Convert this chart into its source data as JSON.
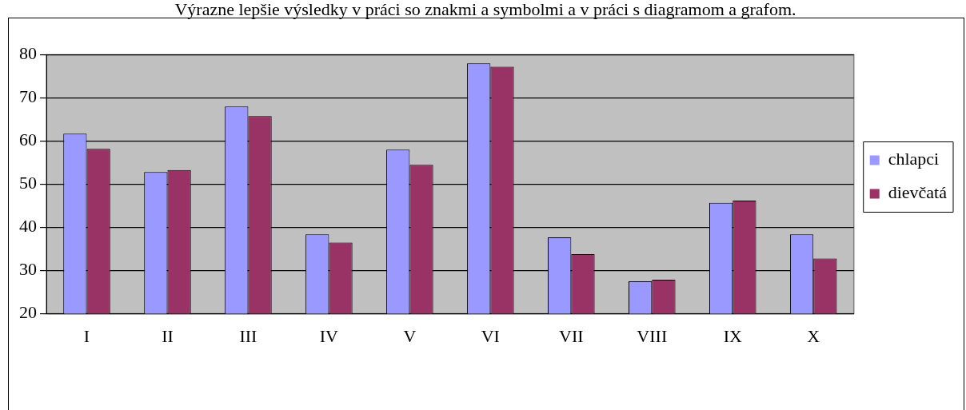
{
  "chart_data": {
    "type": "bar",
    "title": "Výrazne lepšie výsledky v práci so znakmi a symbolmi a v práci s diagramom a grafom.",
    "categories": [
      "I",
      "II",
      "III",
      "IV",
      "V",
      "VI",
      "VII",
      "VIII",
      "IX",
      "X"
    ],
    "series": [
      {
        "name": "chlapci",
        "color": "#9999ff",
        "values": [
          61.7,
          52.8,
          68,
          38.4,
          58,
          78,
          37.7,
          27.5,
          45.7,
          38.4
        ]
      },
      {
        "name": "dievčatá",
        "color": "#993366",
        "values": [
          58.2,
          53.3,
          65.8,
          36.5,
          54.5,
          77.2,
          33.8,
          27.9,
          46.2,
          32.8
        ]
      }
    ],
    "ylim": [
      20,
      80
    ],
    "yticks": [
      20,
      30,
      40,
      50,
      60,
      70,
      80
    ],
    "grid": "y",
    "legend": "right"
  }
}
